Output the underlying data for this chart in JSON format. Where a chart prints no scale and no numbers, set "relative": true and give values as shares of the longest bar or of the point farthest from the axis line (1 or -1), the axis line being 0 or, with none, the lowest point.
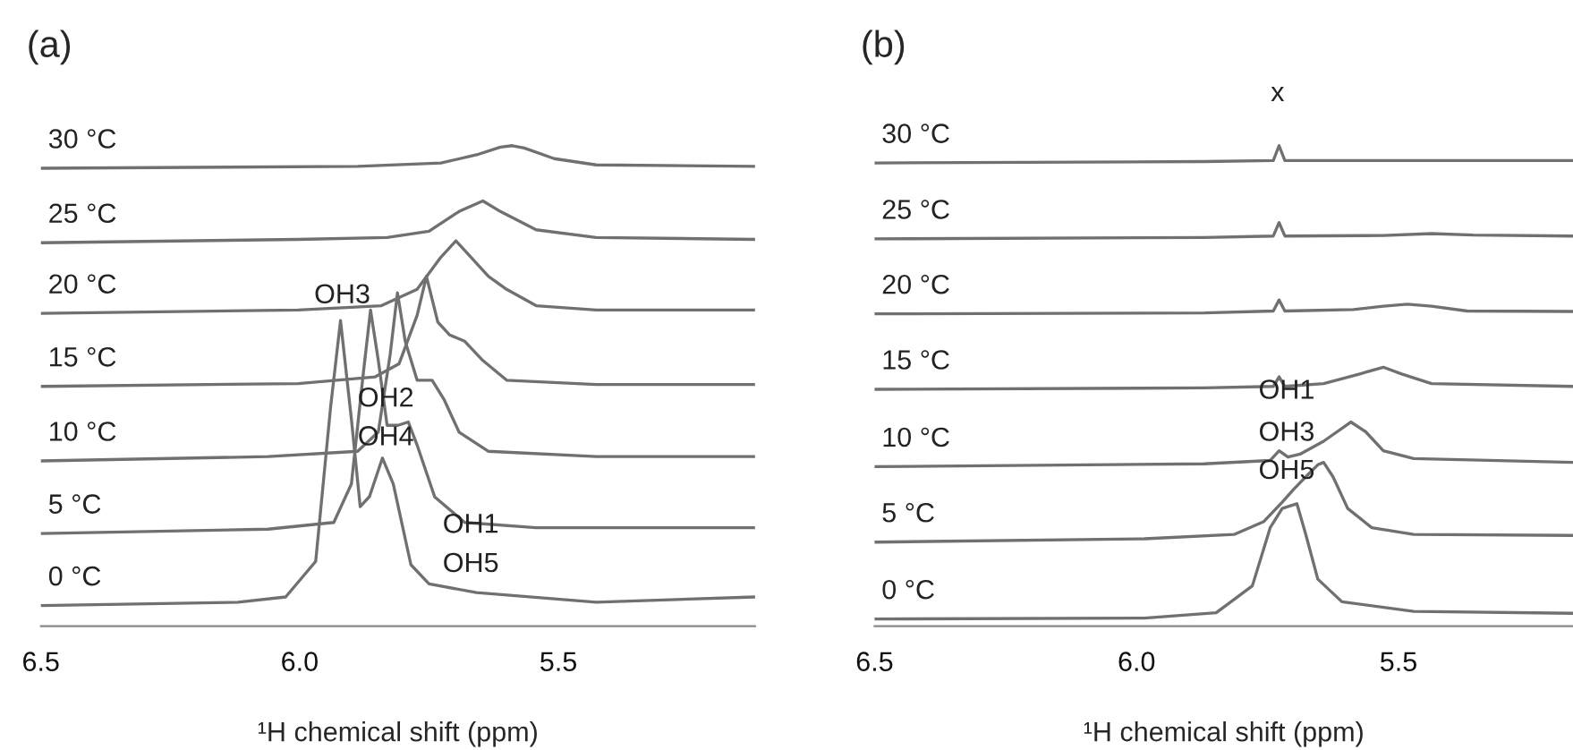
{
  "chart_data": [
    {
      "type": "line",
      "title": "(a)",
      "xlabel": "¹H chemical shift (ppm)",
      "relative": true,
      "xlim": [
        6.5,
        5.12
      ],
      "xticks": [
        {
          "value": 6.5,
          "label": "6.5"
        },
        {
          "value": 6.0,
          "label": "6.0"
        },
        {
          "value": 5.5,
          "label": "5.5"
        }
      ],
      "grid": false,
      "legend": false,
      "marker": "none",
      "line_style": "solid",
      "series": [
        {
          "name": "0 °C",
          "color": "#707070",
          "x": [
            6.5,
            6.119,
            6.027,
            5.969,
            5.94,
            5.921,
            5.9,
            5.883,
            5.865,
            5.84,
            5.819,
            5.785,
            5.75,
            5.658,
            5.427,
            5.12
          ],
          "values": [
            0.043,
            0.05,
            0.061,
            0.135,
            0.458,
            0.636,
            0.431,
            0.249,
            0.27,
            0.35,
            0.296,
            0.128,
            0.088,
            0.07,
            0.05,
            0.061
          ]
        },
        {
          "name": "5 °C",
          "color": "#707070",
          "x": [
            6.5,
            6.061,
            5.934,
            5.9,
            5.877,
            5.863,
            5.848,
            5.831,
            5.81,
            5.79,
            5.773,
            5.739,
            5.681,
            5.543,
            5.12
          ],
          "values": [
            0.193,
            0.202,
            0.216,
            0.296,
            0.526,
            0.658,
            0.553,
            0.418,
            0.418,
            0.425,
            0.377,
            0.269,
            0.216,
            0.205,
            0.205
          ]
        },
        {
          "name": "10 °C",
          "color": "#707070",
          "x": [
            6.5,
            6.061,
            5.888,
            5.848,
            5.825,
            5.811,
            5.796,
            5.773,
            5.744,
            5.721,
            5.692,
            5.635,
            5.427,
            5.12
          ],
          "values": [
            0.344,
            0.353,
            0.364,
            0.404,
            0.566,
            0.694,
            0.593,
            0.512,
            0.512,
            0.472,
            0.404,
            0.364,
            0.353,
            0.353
          ]
        },
        {
          "name": "15 °C",
          "color": "#707070",
          "x": [
            6.5,
            6.003,
            5.854,
            5.808,
            5.773,
            5.755,
            5.733,
            5.71,
            5.681,
            5.646,
            5.6,
            5.427,
            5.12
          ],
          "values": [
            0.499,
            0.505,
            0.519,
            0.546,
            0.647,
            0.728,
            0.633,
            0.606,
            0.593,
            0.553,
            0.512,
            0.503,
            0.503
          ]
        },
        {
          "name": "20 °C",
          "color": "#707070",
          "x": [
            6.5,
            6.003,
            5.842,
            5.773,
            5.727,
            5.698,
            5.669,
            5.635,
            5.6,
            5.543,
            5.427,
            5.12
          ],
          "values": [
            0.651,
            0.658,
            0.667,
            0.701,
            0.768,
            0.802,
            0.768,
            0.728,
            0.701,
            0.667,
            0.658,
            0.658
          ]
        },
        {
          "name": "25 °C",
          "color": "#707070",
          "x": [
            6.5,
            6.003,
            5.831,
            5.75,
            5.692,
            5.646,
            5.612,
            5.543,
            5.427,
            5.12
          ],
          "values": [
            0.798,
            0.805,
            0.809,
            0.822,
            0.863,
            0.885,
            0.863,
            0.825,
            0.809,
            0.805
          ]
        },
        {
          "name": "30 °C",
          "color": "#707070",
          "x": [
            6.5,
            5.888,
            5.727,
            5.658,
            5.612,
            5.589,
            5.566,
            5.508,
            5.427,
            5.12
          ],
          "values": [
            0.953,
            0.957,
            0.964,
            0.981,
            0.997,
            1.0,
            0.995,
            0.973,
            0.96,
            0.957
          ]
        }
      ],
      "annotations": [
        "OH3",
        "OH2",
        "OH4",
        "OH1",
        "OH5"
      ]
    },
    {
      "type": "line",
      "title": "(b)",
      "xlabel": "¹H chemical shift (ppm)",
      "relative": true,
      "xlim": [
        6.5,
        5.167
      ],
      "xticks": [
        {
          "value": 6.5,
          "label": "6.5"
        },
        {
          "value": 6.0,
          "label": "6.0"
        },
        {
          "value": 5.5,
          "label": "5.5"
        }
      ],
      "grid": false,
      "legend": false,
      "marker": "none",
      "line_style": "solid",
      "series": [
        {
          "name": "0 °C",
          "color": "#707070",
          "x": [
            6.5,
            5.985,
            5.848,
            5.779,
            5.745,
            5.722,
            5.705,
            5.694,
            5.677,
            5.654,
            5.608,
            5.471,
            5.167
          ],
          "values": [
            0.015,
            0.017,
            0.028,
            0.084,
            0.205,
            0.245,
            0.251,
            0.255,
            0.191,
            0.098,
            0.051,
            0.031,
            0.027
          ]
        },
        {
          "name": "5 °C",
          "color": "#707070",
          "x": [
            6.5,
            5.985,
            5.814,
            5.757,
            5.722,
            5.7,
            5.677,
            5.654,
            5.643,
            5.625,
            5.597,
            5.551,
            5.471,
            5.167
          ],
          "values": [
            0.175,
            0.182,
            0.191,
            0.218,
            0.258,
            0.285,
            0.311,
            0.336,
            0.341,
            0.311,
            0.245,
            0.205,
            0.191,
            0.189
          ]
        },
        {
          "name": "10 °C",
          "color": "#707070",
          "x": [
            6.5,
            5.871,
            5.745,
            5.728,
            5.711,
            5.688,
            5.643,
            5.591,
            5.563,
            5.529,
            5.471,
            5.167
          ],
          "values": [
            0.332,
            0.338,
            0.345,
            0.365,
            0.352,
            0.358,
            0.385,
            0.425,
            0.405,
            0.365,
            0.349,
            0.341
          ]
        },
        {
          "name": "15 °C",
          "color": "#707070",
          "x": [
            6.5,
            5.871,
            5.739,
            5.728,
            5.717,
            5.643,
            5.574,
            5.529,
            5.494,
            5.437,
            5.167
          ],
          "values": [
            0.493,
            0.496,
            0.499,
            0.519,
            0.499,
            0.505,
            0.525,
            0.539,
            0.525,
            0.505,
            0.499
          ]
        },
        {
          "name": "20 °C",
          "color": "#707070",
          "x": [
            6.5,
            5.871,
            5.739,
            5.728,
            5.717,
            5.586,
            5.529,
            5.483,
            5.437,
            5.369,
            5.167
          ],
          "values": [
            0.65,
            0.652,
            0.656,
            0.679,
            0.656,
            0.659,
            0.666,
            0.67,
            0.666,
            0.656,
            0.655
          ]
        },
        {
          "name": "25 °C",
          "color": "#707070",
          "x": [
            6.5,
            5.871,
            5.739,
            5.728,
            5.717,
            5.529,
            5.437,
            5.357,
            5.167
          ],
          "values": [
            0.806,
            0.809,
            0.812,
            0.84,
            0.812,
            0.813,
            0.817,
            0.814,
            0.812
          ]
        },
        {
          "name": "30 °C",
          "color": "#707070",
          "x": [
            6.5,
            5.871,
            5.739,
            5.728,
            5.717,
            5.529,
            5.167
          ],
          "values": [
            0.964,
            0.967,
            0.969,
            1.0,
            0.969,
            0.969,
            0.969
          ]
        }
      ],
      "annotations": [
        "x",
        "OH1",
        "OH3",
        "OH5"
      ]
    }
  ]
}
